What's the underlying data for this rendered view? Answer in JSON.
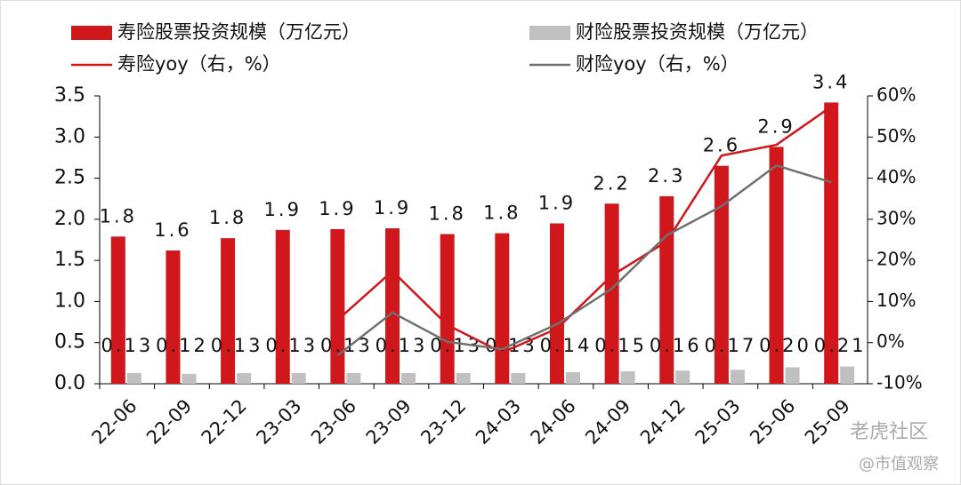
{
  "chart_data": {
    "type": "bar",
    "categories": [
      "22-06",
      "22-09",
      "22-12",
      "23-03",
      "23-06",
      "23-09",
      "23-12",
      "24-03",
      "24-06",
      "24-09",
      "24-12",
      "25-03",
      "25-06",
      "25-09"
    ],
    "series": [
      {
        "name": "寿险股票投资规模（万亿元）",
        "type": "bar",
        "color": "#d0171b",
        "values": [
          1.79,
          1.62,
          1.77,
          1.87,
          1.88,
          1.89,
          1.82,
          1.83,
          1.95,
          2.19,
          2.28,
          2.65,
          2.88,
          3.42
        ],
        "value_labels": [
          "1.8",
          "1.6",
          "1.8",
          "1.9",
          "1.9",
          "1.9",
          "1.8",
          "1.8",
          "1.9",
          "2.2",
          "2.3",
          "2.6",
          "2.9",
          "3.4"
        ]
      },
      {
        "name": "财险股票投资规模（万亿元）",
        "type": "bar",
        "color": "#c0c0c0",
        "values": [
          0.13,
          0.12,
          0.13,
          0.13,
          0.13,
          0.13,
          0.13,
          0.13,
          0.14,
          0.15,
          0.16,
          0.17,
          0.2,
          0.21
        ],
        "value_labels": [
          "0.13",
          "0.12",
          "0.13",
          "0.13",
          "0.13",
          "0.13",
          "0.13",
          "0.13",
          "0.14",
          "0.15",
          "0.16",
          "0.17",
          "0.20",
          "0.21"
        ]
      },
      {
        "name": "寿险yoy（右，%）",
        "type": "line",
        "axis": "y2",
        "color": "#d0171b",
        "values": [
          null,
          null,
          null,
          null,
          5.5,
          17.4,
          4.3,
          -2.4,
          3.4,
          16.3,
          24.6,
          45.5,
          48.1,
          57.4
        ]
      },
      {
        "name": "财险yoy（右，%）",
        "type": "line",
        "axis": "y2",
        "color": "#707070",
        "values": [
          null,
          null,
          null,
          null,
          -3.1,
          7.3,
          0.2,
          -1.6,
          4.5,
          13.1,
          26.1,
          33.2,
          43.1,
          39.0
        ]
      }
    ],
    "ylim": [
      0,
      3.5
    ],
    "yticks": [
      {
        "value": 0,
        "label": "0.0"
      },
      0.5,
      {
        "value": 1,
        "label": "1.0"
      },
      1.5,
      {
        "value": 2,
        "label": "2.0"
      },
      2.5,
      {
        "value": 3,
        "label": "3.0"
      },
      3.5
    ],
    "y2lim": [
      -10,
      60
    ],
    "y2ticks": [
      {
        "value": -10,
        "label": "-10%"
      },
      {
        "value": 0,
        "label": "0%"
      },
      {
        "value": 10,
        "label": "10%"
      },
      {
        "value": 20,
        "label": "20%"
      },
      {
        "value": 30,
        "label": "30%"
      },
      {
        "value": 40,
        "label": "40%"
      },
      {
        "value": 50,
        "label": "50%"
      },
      {
        "value": 60,
        "label": "60%"
      }
    ],
    "watermark": [
      "老虎社区",
      "@市值观察"
    ]
  }
}
